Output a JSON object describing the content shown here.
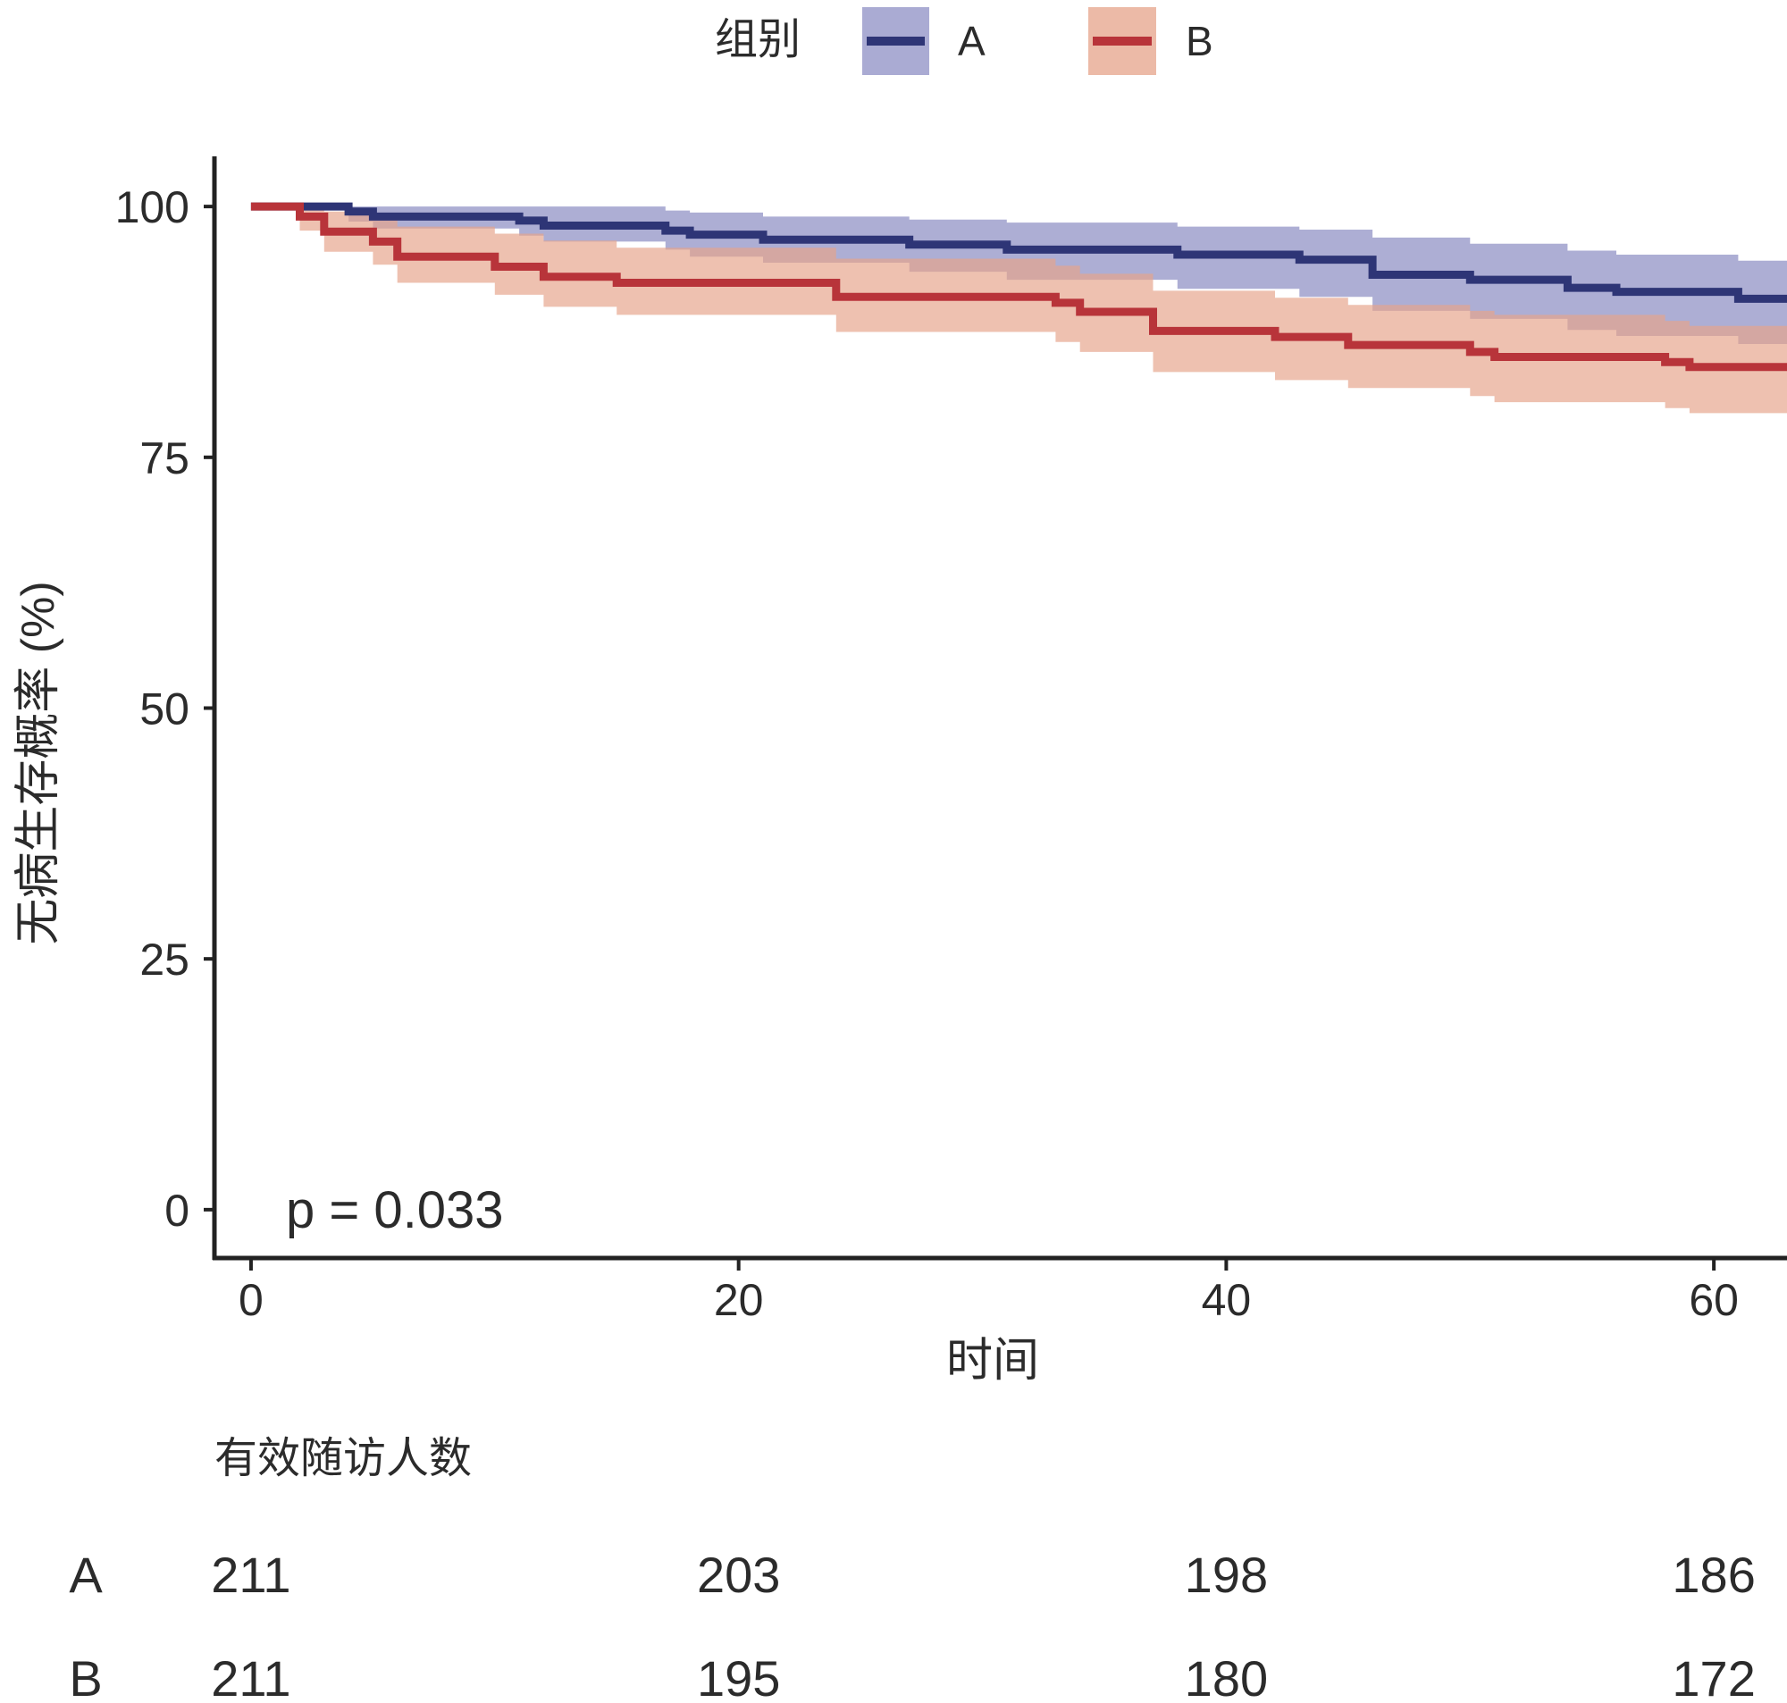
{
  "chart_data": {
    "type": "line",
    "subtype": "kaplan-meier",
    "xlabel": "时间",
    "ylabel": "无病生存概率 (%)",
    "xlim": [
      -1.5,
      63
    ],
    "ylim": [
      -5,
      105
    ],
    "x_ticks": [
      0,
      20,
      40,
      60
    ],
    "y_ticks": [
      0,
      25,
      50,
      75,
      100
    ],
    "legend": {
      "title": "组别",
      "position": "top",
      "entries": [
        "A",
        "B"
      ]
    },
    "annotation": "p = 0.033",
    "series": [
      {
        "name": "A",
        "color": "#2e3576",
        "band_color": "#8e8fc4",
        "x": [
          0,
          4,
          5,
          11,
          12,
          17,
          18,
          21,
          27,
          31,
          38,
          43,
          46,
          50,
          54,
          56,
          61,
          63
        ],
        "y": [
          100,
          99.5,
          99.0,
          98.6,
          98.1,
          97.6,
          97.2,
          96.7,
          96.2,
          95.7,
          95.2,
          94.7,
          93.2,
          92.7,
          91.9,
          91.5,
          90.8,
          90.8
        ],
        "ci_lower": [
          100,
          98.5,
          97.8,
          97.1,
          96.5,
          95.7,
          95.0,
          94.4,
          93.5,
          92.7,
          91.8,
          91.0,
          89.6,
          88.8,
          87.7,
          87.1,
          86.3,
          86.3
        ],
        "ci_upper": [
          100,
          100,
          100,
          100,
          100,
          99.6,
          99.4,
          99.0,
          98.7,
          98.4,
          98.0,
          97.7,
          96.9,
          96.3,
          95.6,
          95.2,
          94.6,
          94.6
        ]
      },
      {
        "name": "B",
        "color": "#b8343a",
        "band_color": "#e6a38a",
        "x": [
          0,
          2,
          3,
          5,
          6,
          10,
          12,
          15,
          24,
          33,
          34,
          37,
          42,
          45,
          50,
          51,
          58,
          59,
          63
        ],
        "y": [
          100,
          99.0,
          97.5,
          96.5,
          95.0,
          94.0,
          93.0,
          92.4,
          91.0,
          90.4,
          89.5,
          87.6,
          87.0,
          86.2,
          85.5,
          85.0,
          84.5,
          84.0,
          84.0
        ],
        "ci_lower": [
          100,
          97.6,
          95.5,
          94.2,
          92.4,
          91.2,
          90.0,
          89.2,
          87.5,
          86.5,
          85.5,
          83.5,
          82.7,
          81.9,
          81.1,
          80.5,
          79.9,
          79.4,
          79.4
        ],
        "ci_upper": [
          100,
          100,
          99.5,
          98.9,
          98.0,
          97.3,
          96.6,
          95.9,
          94.8,
          94.1,
          93.3,
          91.6,
          90.9,
          90.2,
          89.6,
          89.2,
          88.6,
          88.1,
          88.1
        ]
      }
    ],
    "risk_table": {
      "title": "有效随访人数",
      "times": [
        0,
        20,
        40,
        60
      ],
      "rows": [
        {
          "group": "A",
          "values": [
            "211",
            "203",
            "198",
            "186"
          ]
        },
        {
          "group": "B",
          "values": [
            "211",
            "195",
            "180",
            "172"
          ]
        }
      ]
    }
  }
}
